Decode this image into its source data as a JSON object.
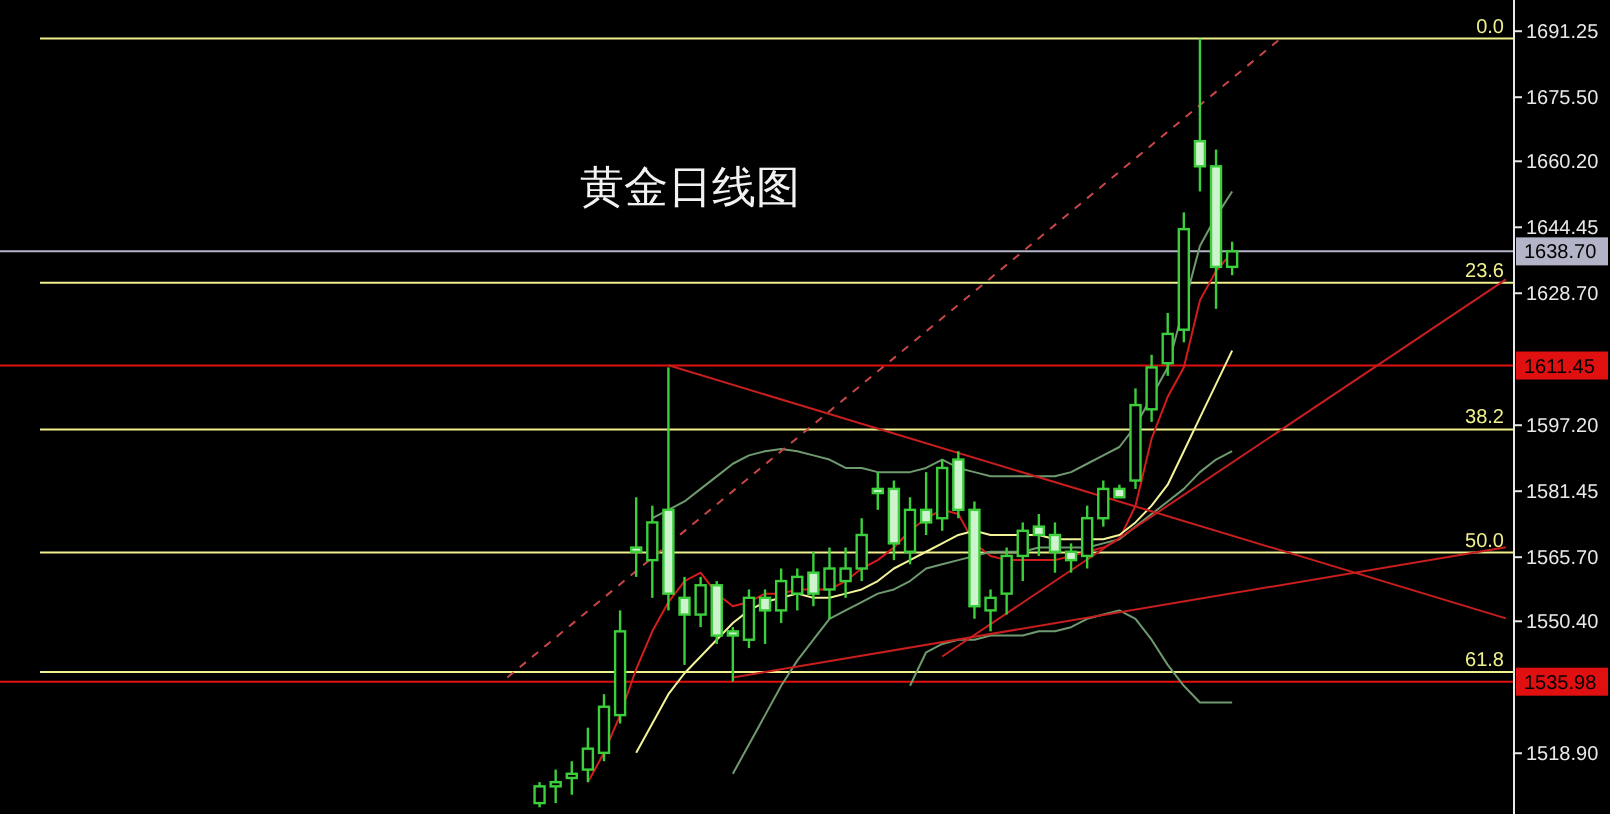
{
  "chart_data": {
    "type": "candlestick",
    "title": "黄金日线图",
    "categories": [
      null,
      null,
      null,
      null,
      null,
      null,
      null,
      null,
      null,
      null,
      null,
      null,
      null,
      null,
      null,
      null,
      null,
      null,
      null,
      null,
      null,
      null,
      null,
      null,
      null,
      null,
      null,
      null,
      null,
      null,
      null,
      null,
      null,
      null,
      null,
      null,
      null,
      null,
      null,
      null,
      null,
      null,
      null,
      null,
      null,
      null,
      null,
      null,
      null,
      null,
      null,
      null,
      null,
      null,
      null,
      null,
      null,
      null,
      null,
      null,
      null,
      null,
      null,
      null,
      null,
      null,
      null,
      null,
      null,
      null,
      null,
      null,
      null,
      null,
      null,
      null,
      null,
      null,
      null,
      null,
      null,
      null,
      null,
      null,
      null,
      null,
      null,
      null,
      null,
      null,
      null,
      null,
      null,
      null
    ],
    "ylim": [
      1504.4,
      1698.7
    ],
    "yticks": [
      {
        "value": 1691.25,
        "label": "1691.25"
      },
      {
        "value": 1675.5,
        "label": "1675.50"
      },
      {
        "value": 1660.2,
        "label": "1660.20"
      },
      {
        "value": 1644.45,
        "label": "1644.45"
      },
      {
        "value": 1628.7,
        "label": "1628.70"
      },
      {
        "value": 1597.2,
        "label": "1597.20"
      },
      {
        "value": 1581.45,
        "label": "1581.45"
      },
      {
        "value": 1565.7,
        "label": "1565.70"
      },
      {
        "value": 1550.4,
        "label": "1550.40"
      },
      {
        "value": 1518.9,
        "label": "1518.90"
      }
    ],
    "tick_labels": "y",
    "grid": false,
    "color": "#3ccf3c",
    "ohlc": [
      null,
      null,
      null,
      null,
      null,
      null,
      null,
      null,
      null,
      null,
      null,
      null,
      null,
      null,
      null,
      null,
      null,
      null,
      null,
      null,
      null,
      null,
      null,
      null,
      null,
      null,
      null,
      null,
      null,
      null,
      null,
      null,
      null,
      [
        1507,
        1512,
        1506,
        1511
      ],
      [
        1511,
        1515,
        1507,
        1512
      ],
      [
        1513,
        1517,
        1509,
        1514
      ],
      [
        1515,
        1525,
        1512,
        1520
      ],
      [
        1519,
        1533,
        1517,
        1530
      ],
      [
        1528,
        1553,
        1526,
        1548
      ],
      [
        1568,
        1580,
        1561,
        1567
      ],
      [
        1565,
        1578,
        1556,
        1574
      ],
      [
        1577,
        1611,
        1553,
        1557
      ],
      [
        1556,
        1561,
        1540,
        1552
      ],
      [
        1552,
        1561,
        1549,
        1559
      ],
      [
        1559,
        1560,
        1545,
        1547
      ],
      [
        1548,
        1549,
        1536,
        1547
      ],
      [
        1546,
        1558,
        1544,
        1556
      ],
      [
        1556,
        1558,
        1545,
        1553
      ],
      [
        1553,
        1563,
        1550,
        1560
      ],
      [
        1557,
        1563,
        1553,
        1561
      ],
      [
        1562,
        1567,
        1554,
        1557
      ],
      [
        1558,
        1568,
        1551,
        1563
      ],
      [
        1560,
        1568,
        1556,
        1563
      ],
      [
        1563,
        1575,
        1560,
        1571
      ],
      [
        1582,
        1586,
        1577,
        1581
      ],
      [
        1582,
        1584,
        1565,
        1569
      ],
      [
        1567,
        1580,
        1564,
        1577
      ],
      [
        1577,
        1586,
        1571,
        1574
      ],
      [
        1575,
        1589,
        1572,
        1587
      ],
      [
        1589,
        1591,
        1575,
        1577
      ],
      [
        1577,
        1579,
        1551,
        1554
      ],
      [
        1553,
        1558,
        1548,
        1556
      ],
      [
        1557,
        1568,
        1552,
        1566
      ],
      [
        1566,
        1574,
        1560,
        1572
      ],
      [
        1573,
        1576,
        1566,
        1571
      ],
      [
        1571,
        1574,
        1562,
        1567
      ],
      [
        1567,
        1569,
        1562,
        1565
      ],
      [
        1566,
        1578,
        1563,
        1575
      ],
      [
        1575,
        1584,
        1573,
        1582
      ],
      [
        1582,
        1583,
        1580,
        1580
      ],
      [
        1584,
        1606,
        1582,
        1602
      ],
      [
        1601,
        1614,
        1598,
        1611
      ],
      [
        1612,
        1624,
        1609,
        1619
      ],
      [
        1620,
        1648,
        1617,
        1644
      ],
      [
        1665,
        1689.5,
        1653,
        1659
      ],
      [
        1659,
        1663,
        1625,
        1635
      ],
      [
        1635,
        1641,
        1633,
        1638.7
      ],
      null,
      null,
      null,
      null,
      null,
      null,
      null,
      null,
      null,
      null,
      null,
      null,
      null,
      null,
      null,
      null,
      null
    ],
    "series": [
      {
        "type": "line",
        "color": "#d41c1c",
        "values": [
          null,
          null,
          null,
          null,
          null,
          null,
          null,
          null,
          null,
          null,
          null,
          null,
          null,
          null,
          null,
          null,
          null,
          null,
          null,
          null,
          null,
          null,
          null,
          null,
          null,
          null,
          null,
          null,
          null,
          null,
          null,
          null,
          null,
          null,
          null,
          null,
          1512,
          1519,
          1528,
          1539,
          1548,
          1555,
          1560,
          1562,
          1557,
          1554,
          1555,
          1557,
          1557,
          1558,
          1558,
          1558,
          1560,
          1563,
          1565,
          1568,
          1572,
          1575,
          1577,
          1576,
          1569,
          1566,
          1565,
          1565,
          1565,
          1565,
          1566,
          1567,
          1568,
          1570,
          1578,
          1594,
          1604,
          1611,
          1627,
          1634,
          1638.5,
          null,
          null,
          null,
          null,
          null,
          null,
          null,
          null,
          null,
          null,
          null,
          null,
          null,
          null,
          null,
          null,
          null
        ]
      },
      {
        "type": "line",
        "color": "#f4f49a",
        "values": [
          null,
          null,
          null,
          null,
          null,
          null,
          null,
          null,
          null,
          null,
          null,
          null,
          null,
          null,
          null,
          null,
          null,
          null,
          null,
          null,
          null,
          null,
          null,
          null,
          null,
          null,
          null,
          null,
          null,
          null,
          null,
          null,
          null,
          null,
          null,
          null,
          null,
          null,
          null,
          1519,
          1526,
          1533,
          1538,
          1542,
          1546,
          1550,
          1553,
          1555,
          1556,
          1557,
          1556,
          1556,
          1557,
          1558,
          1560,
          1563,
          1565,
          1567,
          1569,
          1571,
          1572,
          1571,
          1571,
          1571,
          1571,
          1570,
          1570,
          1570,
          1570,
          1571,
          1574,
          1578,
          1583,
          1591,
          1599,
          1607,
          1615,
          null,
          null,
          null,
          null,
          null,
          null,
          null,
          null,
          null,
          null,
          null,
          null,
          null,
          null,
          null,
          null,
          null
        ]
      },
      {
        "type": "line",
        "color": "#6f9a6f",
        "values": [
          null,
          null,
          null,
          null,
          null,
          null,
          null,
          null,
          null,
          null,
          null,
          null,
          null,
          null,
          null,
          null,
          null,
          null,
          null,
          null,
          null,
          null,
          null,
          null,
          null,
          null,
          null,
          null,
          null,
          null,
          null,
          null,
          null,
          null,
          null,
          null,
          null,
          null,
          null,
          null,
          1575,
          1577,
          1579,
          1582,
          1585,
          1588,
          1590,
          1591,
          1591.5,
          1591,
          1590,
          1589,
          1587,
          1587,
          1586,
          1586,
          1586,
          1587,
          1589,
          1587,
          1586,
          1585,
          1585,
          1585,
          1585,
          1585,
          1586,
          1588,
          1590,
          1592,
          1597,
          null,
          1611,
          null,
          1640,
          1647,
          1653,
          null,
          null,
          null,
          null,
          null,
          null,
          null,
          null,
          null,
          null,
          null,
          null,
          null,
          null,
          null,
          null,
          null
        ]
      },
      {
        "type": "line",
        "color": "#6f9a6f",
        "values": [
          null,
          null,
          null,
          null,
          null,
          null,
          null,
          null,
          null,
          null,
          null,
          null,
          null,
          null,
          null,
          null,
          null,
          null,
          null,
          null,
          null,
          null,
          null,
          null,
          null,
          null,
          null,
          null,
          null,
          null,
          null,
          null,
          null,
          null,
          null,
          null,
          null,
          null,
          null,
          null,
          null,
          null,
          null,
          null,
          null,
          1514,
          1521,
          1528,
          1535,
          1541,
          1546,
          1551,
          1553,
          1555,
          1557,
          1558,
          1560,
          1563,
          1564,
          1565,
          1566,
          1567,
          1567,
          1567,
          1568,
          1568,
          1568,
          1568,
          1569,
          1570,
          1573,
          1576,
          1579,
          1582,
          1586,
          1589,
          1591,
          null,
          null,
          null,
          null,
          null,
          null,
          null,
          null,
          null,
          null,
          null,
          null,
          null,
          null,
          null,
          null,
          null
        ]
      },
      {
        "type": "line",
        "color": "#6f9a6f",
        "values": [
          null,
          null,
          null,
          null,
          null,
          null,
          null,
          null,
          null,
          null,
          null,
          null,
          null,
          null,
          null,
          null,
          null,
          null,
          null,
          null,
          null,
          null,
          null,
          null,
          null,
          null,
          null,
          null,
          null,
          null,
          null,
          null,
          null,
          null,
          null,
          null,
          null,
          null,
          null,
          null,
          null,
          null,
          null,
          null,
          null,
          null,
          null,
          null,
          null,
          null,
          null,
          null,
          null,
          null,
          null,
          null,
          1535,
          1543,
          1545,
          1546,
          1546,
          1547,
          1547,
          1547,
          1548,
          1548,
          1549,
          1551,
          1552,
          1553,
          1551,
          1546,
          1540,
          1535,
          1531,
          1531,
          1531,
          null,
          null,
          null,
          null,
          null,
          null,
          null,
          null,
          null,
          null,
          null,
          null,
          null,
          null,
          null,
          null,
          null
        ]
      },
      {
        "type": "line",
        "color": "#c81e1e",
        "values": [
          null,
          null,
          null,
          null,
          null,
          null,
          null,
          null,
          null,
          null,
          null,
          null,
          null,
          null,
          null,
          null,
          null,
          null,
          null,
          null,
          null,
          null,
          null,
          null,
          null,
          null,
          null,
          null,
          null,
          null,
          null,
          null,
          null,
          null,
          null,
          null,
          null,
          null,
          null,
          null,
          null,
          1611.5,
          null,
          null,
          null,
          null,
          null,
          null,
          null,
          null,
          null,
          null,
          null,
          null,
          null,
          null,
          null,
          null,
          null,
          null,
          null,
          null,
          null,
          null,
          null,
          null,
          null,
          null,
          null,
          null,
          null,
          null,
          null,
          null,
          null,
          null,
          null,
          null,
          null,
          null,
          null,
          null,
          null,
          null,
          null,
          null,
          null,
          null,
          null,
          null,
          null,
          null,
          null,
          1551.1
        ]
      },
      {
        "type": "line",
        "color": "#c81e1e",
        "values": [
          null,
          null,
          null,
          null,
          null,
          null,
          null,
          null,
          null,
          null,
          null,
          null,
          null,
          null,
          null,
          null,
          null,
          null,
          null,
          null,
          null,
          null,
          null,
          null,
          null,
          null,
          null,
          null,
          null,
          null,
          null,
          null,
          null,
          null,
          null,
          null,
          null,
          null,
          null,
          null,
          null,
          null,
          null,
          null,
          null,
          1537,
          null,
          null,
          null,
          null,
          null,
          null,
          null,
          null,
          null,
          null,
          null,
          null,
          null,
          null,
          null,
          null,
          null,
          null,
          null,
          null,
          null,
          null,
          null,
          null,
          null,
          null,
          null,
          null,
          null,
          null,
          null,
          null,
          null,
          null,
          null,
          null,
          null,
          null,
          null,
          null,
          null,
          null,
          null,
          null,
          null,
          null,
          null,
          1568.1
        ]
      },
      {
        "type": "line",
        "color": "#c81e1e",
        "values": [
          null,
          null,
          null,
          null,
          null,
          null,
          null,
          null,
          null,
          null,
          null,
          null,
          null,
          null,
          null,
          null,
          null,
          null,
          null,
          null,
          null,
          null,
          null,
          null,
          null,
          null,
          null,
          null,
          null,
          null,
          null,
          null,
          null,
          null,
          null,
          null,
          null,
          null,
          null,
          null,
          null,
          null,
          null,
          null,
          null,
          null,
          null,
          null,
          null,
          null,
          null,
          null,
          null,
          null,
          null,
          null,
          null,
          null,
          1542,
          null,
          null,
          null,
          null,
          null,
          null,
          null,
          null,
          null,
          null,
          null,
          null,
          null,
          null,
          null,
          null,
          null,
          null,
          null,
          null,
          null,
          null,
          null,
          null,
          null,
          null,
          null,
          null,
          null,
          null,
          null,
          null,
          null,
          null,
          1632
        ]
      },
      {
        "type": "line",
        "color": "#c84646",
        "line_style": "dashed",
        "values": [
          null,
          null,
          null,
          null,
          null,
          null,
          null,
          null,
          null,
          null,
          null,
          null,
          null,
          null,
          null,
          null,
          null,
          null,
          null,
          null,
          null,
          null,
          null,
          null,
          null,
          null,
          null,
          null,
          null,
          null,
          null,
          1537,
          null,
          null,
          null,
          null,
          null,
          null,
          null,
          null,
          null,
          null,
          null,
          null,
          null,
          null,
          null,
          null,
          null,
          null,
          null,
          null,
          null,
          null,
          null,
          null,
          null,
          null,
          null,
          null,
          null,
          null,
          null,
          null,
          null,
          null,
          null,
          null,
          null,
          null,
          null,
          null,
          null,
          null,
          null,
          null,
          null,
          null,
          null,
          1689.5,
          null,
          null,
          null,
          null,
          null,
          null,
          null,
          null,
          null,
          null,
          null,
          null,
          null,
          null
        ]
      }
    ],
    "ref_lines": [
      {
        "axis": "y",
        "value": 1689.5,
        "color": "#f0f08c"
      },
      {
        "axis": "y",
        "value": 1631.2,
        "color": "#f0f08c"
      },
      {
        "axis": "y",
        "value": 1596.2,
        "color": "#f0f08c"
      },
      {
        "axis": "y",
        "value": 1566.8,
        "color": "#f0f08c"
      },
      {
        "axis": "y",
        "value": 1538.3,
        "color": "#f0f08c"
      },
      {
        "axis": "y",
        "value": 1638.7,
        "label": "1638.70",
        "color": "#b4b4c8"
      },
      {
        "axis": "y",
        "value": 1611.45,
        "label": "1611.45",
        "color": "#e01010"
      },
      {
        "axis": "y",
        "value": 1535.98,
        "label": "1535.98",
        "color": "#e01010"
      }
    ],
    "annotations": [
      {
        "text": "0.0",
        "y": 1689.5
      },
      {
        "text": "23.6",
        "y": 1631.2
      },
      {
        "text": "38.2",
        "y": 1596.2
      },
      {
        "text": "50.0",
        "y": 1566.8
      },
      {
        "text": "61.8",
        "y": 1538.3
      }
    ]
  }
}
